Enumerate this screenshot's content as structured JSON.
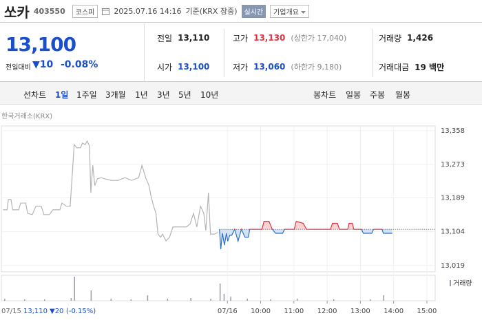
{
  "header": {
    "name": "쏘카",
    "code": "403550",
    "market": "코스피",
    "datetime": "2025.07.16 14:16",
    "basis": "기준(KRX 장중)",
    "realtime": "실시간",
    "company": "기업개요"
  },
  "quote": {
    "price": "13,100",
    "change_label": "전일대비",
    "change": "▼10",
    "change_rate": "-0.08%"
  },
  "stats": [
    {
      "label": "전일",
      "value": "13,110"
    },
    {
      "label": "고가",
      "value": "13,130",
      "note": "(상한가 17,040)"
    },
    {
      "label": "거래량",
      "value": "1,426"
    },
    {
      "label": "시가",
      "value": "13,100"
    },
    {
      "label": "저가",
      "value": "13,060",
      "note": "(하한가 9,180)"
    },
    {
      "label": "거래대금",
      "value": "19 백만"
    }
  ],
  "tabs": {
    "line_label": "선차트",
    "line_periods": [
      "1일",
      "1주일",
      "3개월",
      "1년",
      "3년",
      "5년",
      "10년"
    ],
    "active_period": 0,
    "candle_label": "봉차트",
    "candle_periods": [
      "일봉",
      "주봉",
      "월봉"
    ]
  },
  "chart_data": {
    "type": "line",
    "source": "한국거래소(KRX)",
    "grid": true,
    "xlim": [
      2.2,
      15.25
    ],
    "xticks": [
      {
        "value": 9,
        "label": "07/16"
      },
      {
        "value": 10,
        "label": "10:00"
      },
      {
        "value": 11,
        "label": "11:00"
      },
      {
        "value": 12,
        "label": "12:00"
      },
      {
        "value": 13,
        "label": "13:00"
      },
      {
        "value": 14,
        "label": "14:00"
      },
      {
        "value": 15,
        "label": "15:00"
      }
    ],
    "ylim": [
      13003,
      13370
    ],
    "yticks": [
      {
        "value": 13358,
        "label": "13,358"
      },
      {
        "value": 13273,
        "label": "13,273"
      },
      {
        "value": 13189,
        "label": "13,189"
      },
      {
        "value": 13104,
        "label": "13,104"
      },
      {
        "value": 13019,
        "label": "13,019"
      }
    ],
    "baseline": 13110,
    "series": [
      {
        "color": "#b4b4b4",
        "x": [
          2.25,
          2.37,
          2.41,
          2.49,
          2.54,
          2.72,
          2.78,
          2.93,
          2.99,
          3.13,
          3.24,
          3.4,
          3.48,
          3.65,
          3.75,
          3.96,
          4.02,
          4.16,
          4.27,
          4.35,
          4.39,
          4.47,
          4.58,
          4.64,
          4.72,
          4.78,
          4.85,
          4.89,
          4.95,
          5.01,
          5.09,
          5.2,
          5.3,
          5.51,
          5.71,
          5.92,
          6.12,
          6.33,
          6.43,
          6.54,
          6.64,
          6.7,
          6.78,
          6.85,
          6.91,
          6.99,
          7.05,
          7.15,
          7.26,
          7.36,
          7.57,
          7.77,
          7.88,
          7.98,
          8.08,
          8.19,
          8.29,
          8.35,
          8.43,
          8.49,
          8.6,
          8.72
        ],
        "values": [
          13159,
          13159,
          13185,
          13185,
          13159,
          13159,
          13176,
          13176,
          13150,
          13147,
          13168,
          13168,
          13147,
          13147,
          13159,
          13159,
          13176,
          13168,
          13168,
          13271,
          13323,
          13315,
          13315,
          13327,
          13323,
          13332,
          13320,
          13202,
          13271,
          13220,
          13237,
          13240,
          13237,
          13233,
          13233,
          13240,
          13233,
          13240,
          13271,
          13240,
          13220,
          13194,
          13168,
          13150,
          13098,
          13090,
          13098,
          13081,
          13090,
          13116,
          13116,
          13116,
          13124,
          13150,
          13116,
          13168,
          13150,
          13107,
          13202,
          13098,
          13098,
          13102
        ]
      },
      {
        "color": "#2f6fc4",
        "up_color": "#e0333c",
        "up_fill": "#f8d3d5",
        "down_fill": "#d3e2f5",
        "x": [
          8.76,
          8.8,
          8.85,
          8.91,
          8.97,
          9.01,
          9.07,
          9.13,
          9.22,
          9.32,
          9.42,
          9.53,
          9.63,
          9.67,
          10.04,
          10.1,
          10.25,
          10.35,
          10.45,
          10.66,
          10.72,
          11.01,
          11.07,
          11.28,
          11.38,
          12.1,
          12.16,
          12.31,
          12.37,
          12.62,
          12.66,
          12.76,
          12.8,
          13.03,
          13.09,
          13.34,
          13.4,
          13.65,
          13.69,
          13.96
        ],
        "values": [
          13110,
          13060,
          13100,
          13070,
          13100,
          13080,
          13095,
          13095,
          13110,
          13080,
          13110,
          13090,
          13090,
          13110,
          13110,
          13130,
          13130,
          13110,
          13100,
          13100,
          13110,
          13110,
          13130,
          13125,
          13110,
          13110,
          13125,
          13125,
          13110,
          13110,
          13125,
          13125,
          13110,
          13110,
          13100,
          13100,
          13110,
          13110,
          13100,
          13100
        ]
      }
    ],
    "volume": {
      "name": "거래량",
      "color": "#9a9aa8",
      "ylim": [
        0,
        37
      ],
      "x": [
        2.3,
        2.9,
        3.5,
        4.3,
        4.4,
        4.9,
        5.5,
        6.1,
        6.6,
        7.2,
        7.9,
        8.5,
        8.78,
        8.9,
        9.1,
        9.6,
        10.3,
        11.1,
        12.2,
        13.3,
        13.7
      ],
      "values": [
        3,
        2,
        2,
        4,
        35,
        15,
        3,
        2,
        8,
        3,
        4,
        3,
        25,
        10,
        6,
        3,
        2,
        3,
        2,
        2,
        8
      ]
    }
  },
  "status": {
    "date": "07/15",
    "close": "13,110",
    "change": "▼20",
    "rate": "(-0.15%)"
  }
}
